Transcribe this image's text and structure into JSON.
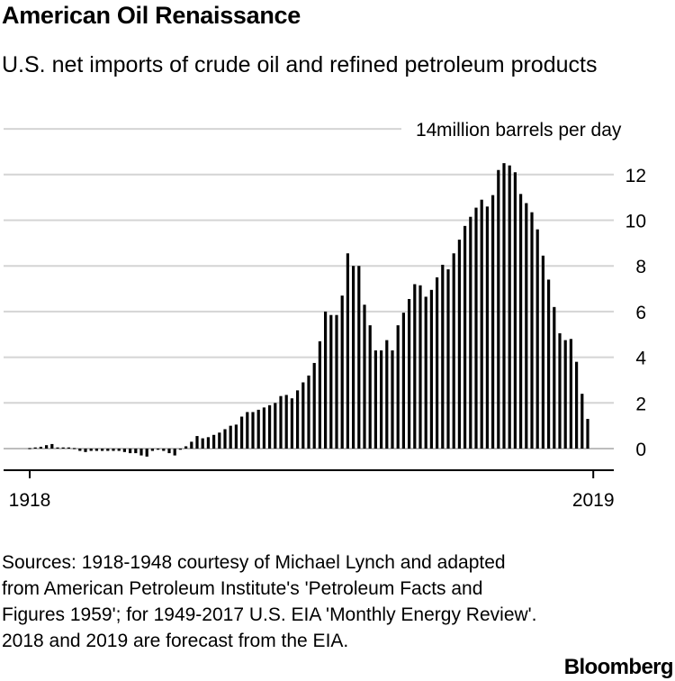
{
  "title": "American Oil Renaissance",
  "subtitle": "U.S. net imports of crude oil and refined petroleum products",
  "source": "Sources: 1918-1948 courtesy of Michael Lynch and adapted from American Petroleum Institute's 'Petroleum Facts and Figures 1959'; for 1949-2017 U.S. EIA 'Monthly Energy Review'. 2018 and 2019 are forecast from the EIA.",
  "logo": "Bloomberg",
  "chart_data": {
    "type": "bar",
    "unit_label": "million barrels per day",
    "x_start": 1918,
    "x_end": 2019,
    "x_tick_labels": [
      "1918",
      "2019"
    ],
    "ylim": [
      0,
      14
    ],
    "y_ticks": [
      0,
      2,
      4,
      6,
      8,
      10,
      12,
      14
    ],
    "grid": true,
    "values": [
      0.02,
      0.05,
      0.08,
      0.15,
      0.2,
      0.05,
      0.05,
      0.05,
      0.02,
      -0.1,
      -0.15,
      -0.1,
      -0.1,
      -0.1,
      -0.1,
      -0.1,
      -0.1,
      -0.15,
      -0.2,
      -0.2,
      -0.3,
      -0.35,
      -0.1,
      -0.05,
      -0.1,
      -0.2,
      -0.3,
      -0.05,
      0.1,
      0.3,
      0.55,
      0.45,
      0.5,
      0.6,
      0.7,
      0.85,
      1.0,
      1.05,
      1.4,
      1.6,
      1.6,
      1.7,
      1.8,
      1.9,
      2.0,
      2.3,
      2.35,
      2.2,
      2.55,
      2.9,
      3.2,
      3.75,
      4.7,
      6.0,
      5.85,
      5.85,
      6.7,
      8.55,
      8.0,
      8.0,
      6.3,
      5.4,
      4.3,
      4.3,
      4.75,
      4.3,
      5.4,
      5.95,
      6.55,
      7.2,
      7.15,
      6.65,
      6.95,
      7.5,
      8.05,
      7.85,
      8.55,
      9.15,
      9.75,
      10.15,
      10.55,
      10.9,
      10.6,
      11.1,
      12.2,
      12.5,
      12.4,
      12.1,
      11.15,
      10.75,
      10.35,
      9.6,
      8.45,
      7.4,
      6.2,
      5.05,
      4.75,
      4.8,
      3.8,
      2.4,
      1.3
    ]
  }
}
